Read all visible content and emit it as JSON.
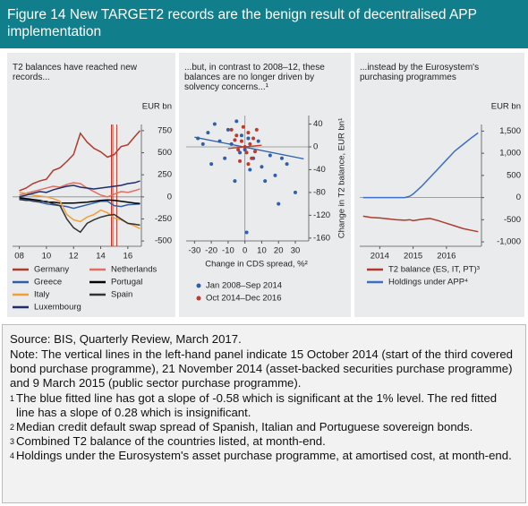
{
  "header": {
    "title": "Figure 14  New TARGET2 records are the benign result of decentralised APP implementation"
  },
  "chart_data": [
    {
      "type": "line",
      "subtitle": "T2 balances have reached new records...",
      "y_unit": "EUR bn",
      "x": [
        2008,
        2008.5,
        2009,
        2009.5,
        2010,
        2010.5,
        2011,
        2011.5,
        2012,
        2012.5,
        2013,
        2013.5,
        2014,
        2014.5,
        2015,
        2015.5,
        2016,
        2016.5,
        2016.9
      ],
      "xlim": [
        2007.5,
        2017
      ],
      "xticks": [
        {
          "value": 2008,
          "label": "08"
        },
        {
          "value": 2010,
          "label": "10"
        },
        {
          "value": 2012,
          "label": "12"
        },
        {
          "value": 2014,
          "label": "14"
        },
        {
          "value": 2016,
          "label": "16"
        }
      ],
      "ylim": [
        -560,
        820
      ],
      "yticks": [
        -500,
        -250,
        0,
        250,
        500,
        750
      ],
      "vlines": [
        2014.79,
        2014.89,
        2015.19
      ],
      "vline_color": "#c0392b",
      "series": [
        {
          "name": "Germany",
          "color": "#b03a2e",
          "values": [
            70,
            100,
            150,
            180,
            200,
            300,
            330,
            400,
            480,
            720,
            620,
            550,
            510,
            450,
            480,
            570,
            590,
            680,
            750
          ]
        },
        {
          "name": "Netherlands",
          "color": "#e07060",
          "values": [
            20,
            40,
            60,
            80,
            100,
            120,
            110,
            140,
            160,
            150,
            100,
            60,
            20,
            0,
            30,
            60,
            50,
            70,
            90
          ]
        },
        {
          "name": "Greece",
          "color": "#2e5faa",
          "values": [
            -20,
            -30,
            -50,
            -60,
            -80,
            -90,
            -100,
            -110,
            -130,
            -110,
            -90,
            -70,
            -50,
            -50,
            -100,
            -110,
            -90,
            -85,
            -80
          ]
        },
        {
          "name": "Portugal",
          "color": "#000000",
          "values": [
            -10,
            -20,
            -30,
            -40,
            -60,
            -60,
            -70,
            -70,
            -70,
            -65,
            -60,
            -50,
            -40,
            -35,
            -40,
            -50,
            -60,
            -70,
            -75
          ]
        },
        {
          "name": "Italy",
          "color": "#f0a03a",
          "values": [
            50,
            40,
            20,
            10,
            0,
            -20,
            -50,
            -200,
            -260,
            -280,
            -230,
            -200,
            -150,
            -180,
            -240,
            -260,
            -300,
            -330,
            -360
          ]
        },
        {
          "name": "Spain",
          "color": "#333333",
          "values": [
            -30,
            -40,
            -40,
            -50,
            -50,
            -80,
            -100,
            -250,
            -350,
            -400,
            -300,
            -260,
            -230,
            -210,
            -200,
            -250,
            -300,
            -310,
            -320
          ]
        },
        {
          "name": "Luxembourg",
          "color": "#1f2d6b",
          "values": [
            0,
            20,
            40,
            60,
            50,
            80,
            100,
            120,
            130,
            110,
            100,
            90,
            100,
            110,
            120,
            130,
            150,
            160,
            180
          ]
        }
      ]
    },
    {
      "type": "scatter",
      "subtitle": "...but, in contrast to 2008–12, these balances are no longer driven by solvency concerns...¹",
      "x_label": "Change in CDS spread, %²",
      "y_label": "Change in T2 balance, EUR bn¹",
      "xlim": [
        -35,
        38
      ],
      "xticks": [
        -30,
        -20,
        -10,
        0,
        10,
        20,
        30
      ],
      "ylim": [
        -165,
        55
      ],
      "yticks": [
        40,
        0,
        -40,
        -80,
        -120,
        -160
      ],
      "series": [
        {
          "name": "Jan 2008–Sep 2014",
          "color": "#2e5faa",
          "x": [
            -28,
            -25,
            -22,
            -20,
            -18,
            -15,
            -12,
            -10,
            -8,
            -5,
            -3,
            -2,
            0,
            2,
            3,
            5,
            8,
            10,
            12,
            15,
            18,
            20,
            25,
            30,
            -6,
            1,
            22
          ],
          "values": [
            15,
            5,
            25,
            -30,
            40,
            10,
            -20,
            30,
            5,
            45,
            -10,
            20,
            -5,
            15,
            -40,
            -20,
            10,
            -35,
            -60,
            -15,
            -50,
            -100,
            -30,
            -80,
            -60,
            -150,
            -20
          ],
          "trend": {
            "x": [
              -30,
              35
            ],
            "values": [
              17,
              -21
            ]
          }
        },
        {
          "name": "Oct 2014–Dec 2016",
          "color": "#c0392b",
          "x": [
            -8,
            -5,
            -4,
            -2,
            -1,
            0,
            1,
            2,
            3,
            4,
            5,
            6,
            -3,
            7,
            -6,
            2
          ],
          "values": [
            30,
            20,
            -5,
            10,
            35,
            0,
            -10,
            25,
            5,
            -20,
            15,
            -8,
            -25,
            30,
            12,
            -30
          ],
          "trend": {
            "x": [
              -10,
              10
            ],
            "values": [
              -3,
              3
            ]
          }
        }
      ]
    },
    {
      "type": "line",
      "subtitle": "...instead by the Eurosystem's purchasing programmes",
      "y_unit": "EUR bn",
      "x": [
        2013.5,
        2013.75,
        2014,
        2014.25,
        2014.5,
        2014.75,
        2014.9,
        2015,
        2015.25,
        2015.5,
        2015.75,
        2016,
        2016.25,
        2016.5,
        2016.75,
        2016.95
      ],
      "xlim": [
        2013.4,
        2017.05
      ],
      "xticks": [
        2014,
        2015,
        2016
      ],
      "ylim": [
        -1100,
        1650
      ],
      "yticks": [
        {
          "value": 1500,
          "label": "1,500"
        },
        {
          "value": 1000,
          "label": "1,000"
        },
        500,
        0,
        -500,
        {
          "value": -1000,
          "label": "-1,000"
        }
      ],
      "series": [
        {
          "name": "T2 balance (ES, IT, PT)³",
          "color": "#b03a2e",
          "values": [
            -420,
            -450,
            -460,
            -480,
            -500,
            -510,
            -500,
            -520,
            -490,
            -470,
            -520,
            -580,
            -640,
            -700,
            -740,
            -770
          ]
        },
        {
          "name": "Holdings under APP⁴",
          "color": "#3c6fc4",
          "values": [
            0,
            0,
            0,
            0,
            0,
            0,
            30,
            80,
            250,
            450,
            650,
            850,
            1050,
            1200,
            1350,
            1460
          ]
        }
      ]
    }
  ],
  "notes": {
    "lines": [
      "Source: BIS, Quarterly Review, March 2017.",
      "Note: The vertical lines in the left-hand panel indicate 15 October 2014 (start of the third covered bond purchase programme), 21 November 2014 (asset-backed securities purchase programme) and 9 March 2015 (public sector purchase programme)."
    ],
    "footnotes": [
      {
        "marker": "1",
        "text": "The blue fitted line has got a slope of -0.58 which is significant at the 1% level. The red fitted line has a slope of 0.28 which is insignificant."
      },
      {
        "marker": "2",
        "text": "Median credit default swap spread of Spanish, Italian and Portuguese sovereign bonds."
      },
      {
        "marker": "3",
        "text": "Combined T2 balance of the countries listed, at month-end."
      },
      {
        "marker": "4",
        "text": "Holdings under the Eurosystem's asset purchase programme, at amortised cost, at month-end."
      }
    ]
  }
}
